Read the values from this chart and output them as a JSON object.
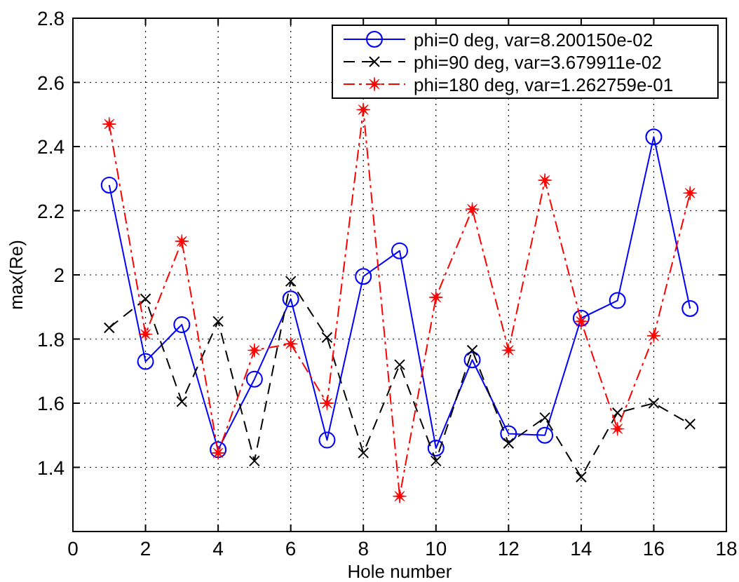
{
  "chart_data": {
    "type": "line",
    "xlabel": "Hole number",
    "ylabel": "max(Re)",
    "x": [
      1,
      2,
      3,
      4,
      5,
      6,
      7,
      8,
      9,
      10,
      11,
      12,
      13,
      14,
      15,
      16,
      17
    ],
    "series": [
      {
        "name": "phi=0 deg, var=8.200150e-02",
        "color": "#0000ff",
        "marker": "circle",
        "line_style": "solid",
        "values": [
          2.28,
          1.73,
          1.845,
          1.455,
          1.675,
          1.925,
          1.485,
          1.995,
          2.075,
          1.46,
          1.735,
          1.505,
          1.5,
          1.865,
          1.92,
          2.43,
          1.895
        ]
      },
      {
        "name": "phi=90 deg, var=3.679911e-02",
        "color": "#000000",
        "marker": "cross",
        "line_style": "dashed",
        "values": [
          1.835,
          1.925,
          1.605,
          1.855,
          1.42,
          1.98,
          1.805,
          1.445,
          1.72,
          1.42,
          1.765,
          1.475,
          1.555,
          1.37,
          1.57,
          1.6,
          1.535
        ]
      },
      {
        "name": "phi=180 deg, var=1.262759e-01",
        "color": "#ff0000",
        "marker": "star",
        "line_style": "dashdot",
        "values": [
          2.47,
          1.815,
          2.105,
          1.445,
          1.765,
          1.785,
          1.6,
          2.515,
          1.31,
          1.93,
          2.205,
          1.765,
          2.295,
          1.855,
          1.52,
          1.81,
          2.255
        ]
      }
    ],
    "xlim": [
      0,
      18
    ],
    "xticks": [
      0,
      2,
      4,
      6,
      8,
      10,
      12,
      14,
      16,
      18
    ],
    "ylim": [
      1.2,
      2.8
    ],
    "yticks": [
      1.4,
      1.6,
      1.8,
      2,
      2.2,
      2.4,
      2.6,
      2.8
    ],
    "grid": true,
    "legend": "top right"
  }
}
